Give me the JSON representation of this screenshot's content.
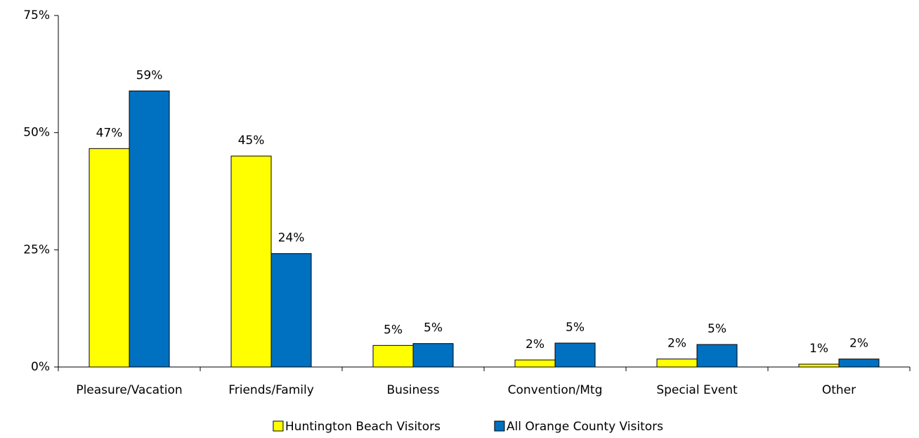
{
  "chart_data": {
    "type": "bar",
    "categories": [
      "Pleasure/Vacation",
      "Friends/Family",
      "Business",
      "Convention/Mtg",
      "Special Event",
      "Other"
    ],
    "series": [
      {
        "name": "Huntington Beach Visitors",
        "color": "#ffff00",
        "values": [
          46.6,
          45.0,
          4.6,
          1.5,
          1.7,
          0.6
        ],
        "value_labels": [
          "47%",
          "45%",
          "5%",
          "2%",
          "2%",
          "1%"
        ]
      },
      {
        "name": "All Orange County Visitors",
        "color": "#0070c0",
        "values": [
          58.9,
          24.2,
          5.0,
          5.1,
          4.8,
          1.7
        ],
        "value_labels": [
          "59%",
          "24%",
          "5%",
          "5%",
          "5%",
          "2%"
        ]
      }
    ],
    "ylim": [
      0,
      75
    ],
    "yticks": [
      {
        "value": 0,
        "label": "0%"
      },
      {
        "value": 25,
        "label": "25%"
      },
      {
        "value": 50,
        "label": "50%"
      },
      {
        "value": 75,
        "label": "75%"
      }
    ],
    "grid": false,
    "legend": "bottom"
  }
}
